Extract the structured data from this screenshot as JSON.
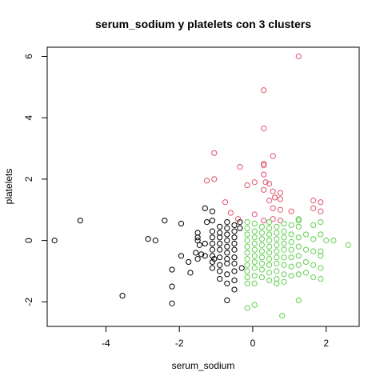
{
  "chart_data": {
    "type": "scatter",
    "title": "serum_sodium  y  platelets con  3  clusters",
    "xlabel": "serum_sodium",
    "ylabel": "platelets",
    "xlim": [
      -5.6,
      2.9
    ],
    "ylim": [
      -2.8,
      6.3
    ],
    "xticks": [
      -4,
      -2,
      0,
      2
    ],
    "yticks": [
      -2,
      0,
      2,
      4,
      6
    ],
    "grid": false,
    "legend": "none",
    "series": [
      {
        "color": "#000000",
        "points": [
          [
            -5.4,
            0.0
          ],
          [
            -4.7,
            0.65
          ],
          [
            -3.55,
            -1.8
          ],
          [
            -2.85,
            0.05
          ],
          [
            -2.65,
            0.0
          ],
          [
            -2.4,
            0.65
          ],
          [
            -2.2,
            -0.95
          ],
          [
            -2.2,
            -1.5
          ],
          [
            -2.2,
            -2.05
          ],
          [
            -1.95,
            0.55
          ],
          [
            -1.95,
            -0.5
          ],
          [
            -1.75,
            -0.7
          ],
          [
            -1.7,
            -1.05
          ],
          [
            -1.55,
            -0.4
          ],
          [
            -1.5,
            -0.6
          ],
          [
            -1.5,
            0.0
          ],
          [
            -1.5,
            0.1
          ],
          [
            -1.5,
            0.25
          ],
          [
            -1.45,
            -0.15
          ],
          [
            -1.4,
            -0.45
          ],
          [
            -1.3,
            1.05
          ],
          [
            -1.3,
            -0.1
          ],
          [
            -1.3,
            -0.5
          ],
          [
            -1.25,
            0.6
          ],
          [
            -1.1,
            0.95
          ],
          [
            -1.1,
            0.65
          ],
          [
            -1.1,
            0.3
          ],
          [
            -1.1,
            0.1
          ],
          [
            -1.1,
            -0.1
          ],
          [
            -1.1,
            -0.3
          ],
          [
            -1.1,
            -0.5
          ],
          [
            -1.1,
            -0.7
          ],
          [
            -1.1,
            -0.9
          ],
          [
            -1.05,
            -0.6
          ],
          [
            -0.9,
            0.45
          ],
          [
            -0.9,
            0.25
          ],
          [
            -0.9,
            0.1
          ],
          [
            -0.9,
            -0.1
          ],
          [
            -0.9,
            -0.3
          ],
          [
            -0.9,
            -0.55
          ],
          [
            -0.9,
            -0.8
          ],
          [
            -0.9,
            -1.0
          ],
          [
            -0.9,
            -1.25
          ],
          [
            -0.7,
            0.6
          ],
          [
            -0.7,
            0.4
          ],
          [
            -0.7,
            0.2
          ],
          [
            -0.7,
            0.0
          ],
          [
            -0.7,
            -0.2
          ],
          [
            -0.7,
            -0.4
          ],
          [
            -0.7,
            -0.6
          ],
          [
            -0.7,
            -0.75
          ],
          [
            -0.7,
            -1.1
          ],
          [
            -0.7,
            -1.4
          ],
          [
            -0.7,
            -1.95
          ],
          [
            -0.5,
            0.5
          ],
          [
            -0.5,
            0.3
          ],
          [
            -0.5,
            0.1
          ],
          [
            -0.5,
            -0.1
          ],
          [
            -0.5,
            -0.3
          ],
          [
            -0.5,
            -0.55
          ],
          [
            -0.5,
            -0.75
          ],
          [
            -0.5,
            -1.0
          ],
          [
            -0.5,
            -1.3
          ],
          [
            -0.5,
            -1.6
          ],
          [
            -0.35,
            0.6
          ],
          [
            -0.35,
            0.4
          ],
          [
            -0.3,
            -0.9
          ]
        ]
      },
      {
        "color": "#DF536B",
        "points": [
          [
            1.25,
            6.0
          ],
          [
            0.3,
            4.9
          ],
          [
            0.3,
            3.65
          ],
          [
            0.55,
            2.75
          ],
          [
            -1.05,
            2.85
          ],
          [
            0.3,
            2.5
          ],
          [
            0.3,
            2.45
          ],
          [
            -0.35,
            2.4
          ],
          [
            0.3,
            2.15
          ],
          [
            -1.05,
            2.0
          ],
          [
            -1.25,
            1.95
          ],
          [
            0.05,
            1.9
          ],
          [
            0.35,
            1.9
          ],
          [
            0.45,
            1.85
          ],
          [
            -0.15,
            1.8
          ],
          [
            0.3,
            1.65
          ],
          [
            0.55,
            1.6
          ],
          [
            0.75,
            1.55
          ],
          [
            0.6,
            1.4
          ],
          [
            0.75,
            1.35
          ],
          [
            0.45,
            1.3
          ],
          [
            -0.75,
            1.25
          ],
          [
            1.65,
            1.3
          ],
          [
            1.85,
            1.25
          ],
          [
            0.55,
            1.05
          ],
          [
            0.75,
            1.0
          ],
          [
            1.05,
            0.95
          ],
          [
            1.65,
            1.05
          ],
          [
            1.85,
            0.95
          ],
          [
            -0.6,
            0.9
          ],
          [
            0.05,
            0.85
          ],
          [
            0.55,
            0.7
          ],
          [
            0.75,
            0.65
          ],
          [
            -0.4,
            0.7
          ],
          [
            0.3,
            0.65
          ]
        ]
      },
      {
        "color": "#61D04F",
        "points": [
          [
            -0.15,
            0.6
          ],
          [
            -0.15,
            0.4
          ],
          [
            -0.15,
            0.2
          ],
          [
            -0.15,
            0.0
          ],
          [
            -0.15,
            -0.2
          ],
          [
            -0.15,
            -0.4
          ],
          [
            -0.15,
            -0.6
          ],
          [
            -0.15,
            -0.8
          ],
          [
            -0.15,
            -1.0
          ],
          [
            -0.15,
            -1.2
          ],
          [
            -0.15,
            -1.4
          ],
          [
            -0.15,
            -2.2
          ],
          [
            0.05,
            0.55
          ],
          [
            0.05,
            0.3
          ],
          [
            0.05,
            0.1
          ],
          [
            0.05,
            -0.1
          ],
          [
            0.05,
            -0.3
          ],
          [
            0.05,
            -0.5
          ],
          [
            0.05,
            -0.7
          ],
          [
            0.05,
            -0.9
          ],
          [
            0.05,
            -1.15
          ],
          [
            0.05,
            -1.4
          ],
          [
            0.05,
            -2.1
          ],
          [
            0.25,
            0.45
          ],
          [
            0.25,
            0.25
          ],
          [
            0.25,
            0.05
          ],
          [
            0.25,
            -0.15
          ],
          [
            0.25,
            -0.35
          ],
          [
            0.25,
            -0.55
          ],
          [
            0.25,
            -0.75
          ],
          [
            0.25,
            -0.95
          ],
          [
            0.25,
            -1.2
          ],
          [
            0.45,
            0.6
          ],
          [
            0.45,
            0.4
          ],
          [
            0.45,
            0.2
          ],
          [
            0.45,
            0.0
          ],
          [
            0.45,
            -0.2
          ],
          [
            0.45,
            -0.4
          ],
          [
            0.45,
            -0.6
          ],
          [
            0.45,
            -0.8
          ],
          [
            0.45,
            -1.05
          ],
          [
            0.45,
            -1.3
          ],
          [
            0.65,
            0.45
          ],
          [
            0.65,
            0.25
          ],
          [
            0.65,
            0.05
          ],
          [
            0.65,
            -0.15
          ],
          [
            0.65,
            -0.35
          ],
          [
            0.65,
            -0.55
          ],
          [
            0.65,
            -0.75
          ],
          [
            0.65,
            -1.0
          ],
          [
            0.65,
            -1.25
          ],
          [
            0.65,
            -1.4
          ],
          [
            0.85,
            0.55
          ],
          [
            0.85,
            0.3
          ],
          [
            0.85,
            0.1
          ],
          [
            0.85,
            -0.1
          ],
          [
            0.85,
            -0.3
          ],
          [
            0.85,
            -0.55
          ],
          [
            0.85,
            -0.8
          ],
          [
            0.85,
            -1.1
          ],
          [
            0.85,
            -1.35
          ],
          [
            0.8,
            -2.45
          ],
          [
            1.05,
            0.5
          ],
          [
            1.05,
            0.2
          ],
          [
            1.05,
            -0.05
          ],
          [
            1.05,
            -0.3
          ],
          [
            1.05,
            -0.55
          ],
          [
            1.05,
            -0.85
          ],
          [
            1.05,
            -1.15
          ],
          [
            1.25,
            0.7
          ],
          [
            1.25,
            0.65
          ],
          [
            1.25,
            0.45
          ],
          [
            1.25,
            0.1
          ],
          [
            1.25,
            -0.2
          ],
          [
            1.25,
            -0.5
          ],
          [
            1.25,
            -0.8
          ],
          [
            1.25,
            -1.1
          ],
          [
            1.25,
            -1.95
          ],
          [
            1.45,
            0.2
          ],
          [
            1.45,
            -0.3
          ],
          [
            1.45,
            -0.7
          ],
          [
            1.45,
            -1.05
          ],
          [
            1.65,
            0.5
          ],
          [
            1.65,
            0.05
          ],
          [
            1.65,
            -0.35
          ],
          [
            1.65,
            -0.8
          ],
          [
            1.65,
            -1.2
          ],
          [
            1.85,
            0.6
          ],
          [
            1.85,
            0.2
          ],
          [
            1.85,
            -0.35
          ],
          [
            1.85,
            -0.5
          ],
          [
            1.85,
            -0.9
          ],
          [
            1.85,
            -1.25
          ],
          [
            2.0,
            0.0
          ],
          [
            2.2,
            0.0
          ],
          [
            2.6,
            -0.15
          ]
        ]
      }
    ]
  }
}
